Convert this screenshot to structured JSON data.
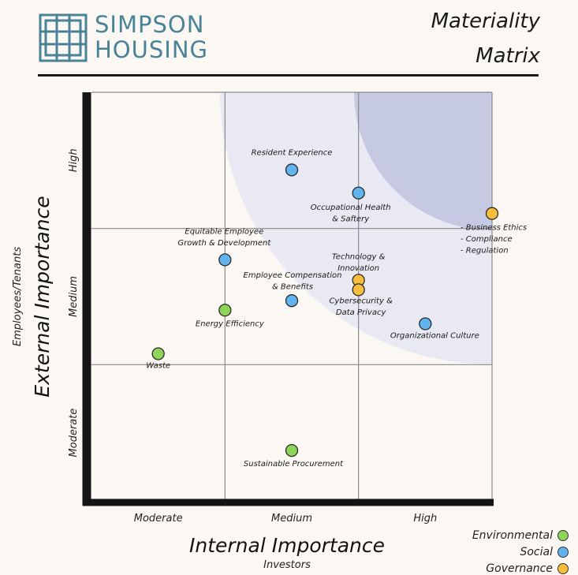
{
  "header": {
    "logo_line1": "SIMPSON",
    "logo_line2": "HOUSING",
    "title_line1": "Materiality",
    "title_line2": "Matrix",
    "brand_color": "#4a8297"
  },
  "legend": {
    "items": [
      {
        "label": "Environmental",
        "color": "#8fd45a"
      },
      {
        "label": "Social",
        "color": "#62b4ef"
      },
      {
        "label": "Governance",
        "color": "#f7bd3b"
      }
    ]
  },
  "chart_data": {
    "type": "scatter",
    "xlabel": "Internal Importance",
    "xlabel_sub": "Investors",
    "ylabel": "External Importance",
    "ylabel_sub": "Employees/Tenants",
    "xlim": [
      0,
      3
    ],
    "ylim": [
      0,
      3
    ],
    "x_ticks": [
      "Moderate",
      "Medium",
      "High"
    ],
    "y_ticks": [
      "Moderate",
      "Medium",
      "High"
    ],
    "grid": true,
    "colors": {
      "Environmental": "#8fd45a",
      "Social": "#62b4ef",
      "Governance": "#f7bd3b"
    },
    "points": [
      {
        "label": "Resident Experience",
        "x": 1.5,
        "y": 2.43,
        "category": "Social"
      },
      {
        "label": "Occupational Health & Saftery",
        "x": 2.0,
        "y": 2.26,
        "category": "Social"
      },
      {
        "label": "Business Ethics",
        "x": 3.0,
        "y": 2.11,
        "category": "Governance",
        "sublabels": [
          "- Business Ethics",
          "- Compliance",
          "- Regulation"
        ]
      },
      {
        "label": "Equitable Employee Growth & Development",
        "x": 1.0,
        "y": 1.77,
        "category": "Social"
      },
      {
        "label": "Technology & Innovation",
        "x": 2.0,
        "y": 1.62,
        "category": "Governance"
      },
      {
        "label": "Cybersecurity & Data Privacy",
        "x": 2.0,
        "y": 1.55,
        "category": "Governance"
      },
      {
        "label": "Employee Compensation & Benefits",
        "x": 1.5,
        "y": 1.47,
        "category": "Social"
      },
      {
        "label": "Energy Efficiency",
        "x": 1.0,
        "y": 1.4,
        "category": "Environmental"
      },
      {
        "label": "Organizational Culture",
        "x": 2.5,
        "y": 1.3,
        "category": "Social"
      },
      {
        "label": "Waste",
        "x": 0.5,
        "y": 1.08,
        "category": "Environmental"
      },
      {
        "label": "Sustainable Procurement",
        "x": 1.5,
        "y": 0.37,
        "category": "Environmental"
      }
    ]
  }
}
